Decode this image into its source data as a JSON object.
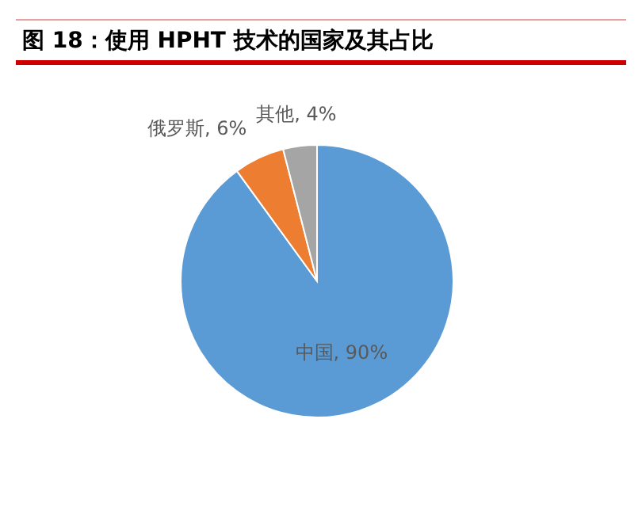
{
  "chart_data": {
    "type": "pie",
    "title": "图 18：使用 HPHT 技术的国家及其占比",
    "categories": [
      "中国",
      "俄罗斯",
      "其他"
    ],
    "values": [
      90,
      6,
      4
    ],
    "colors": [
      "#5b9bd5",
      "#ed7d31",
      "#a5a5a5"
    ],
    "value_labels": [
      "90%",
      "6%",
      "4%"
    ]
  }
}
